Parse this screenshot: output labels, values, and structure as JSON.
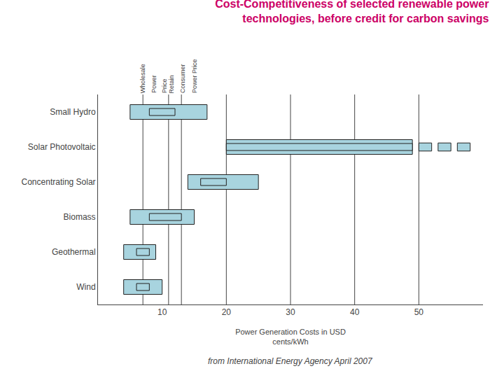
{
  "chart_data": {
    "type": "bar",
    "orientation": "horizontal",
    "title": "Cost-Competitiveness of selected renewable power\ntechnologies, before credit for carbon savings",
    "title_color": "#cc0066",
    "subtitle": "from International Energy Agency April 2007",
    "x_label": "Power Generation Costs in USD\ncents/kWh",
    "categories": [
      "Small Hydro",
      "Solar Photovoltaic",
      "Concentrating Solar",
      "Biomass",
      "Geothermal",
      "Wind"
    ],
    "series": [
      {
        "color": "#a8d4df",
        "low": [
          5,
          20,
          14,
          5,
          4,
          4
        ],
        "high": [
          17,
          49,
          25,
          15,
          9,
          10
        ]
      },
      {
        "color": "#a8d4df",
        "low": [
          8,
          20,
          16,
          8,
          6,
          6
        ],
        "high": [
          12,
          49,
          20,
          13,
          8,
          8
        ]
      }
    ],
    "extra_bars": {
      "category": "Solar Photovoltaic",
      "color": "#a8d4df",
      "low": [
        50,
        53,
        56
      ],
      "high": [
        52,
        55,
        58
      ]
    },
    "edge_color": "#222222",
    "vlines": [
      7,
      11,
      13,
      20,
      30,
      40,
      50
    ],
    "annotations": [
      {
        "text": "Wholesale",
        "x": 7
      },
      {
        "text": "Power",
        "x": 8.7
      },
      {
        "text": "Price",
        "x": 10.3
      },
      {
        "text": "Retain",
        "x": 11.5
      },
      {
        "text": "Consumer",
        "x": 13.2
      },
      {
        "text": "Power Price",
        "x": 15.0
      }
    ],
    "xlim": [
      0,
      60
    ],
    "xticks": [
      10,
      20,
      30,
      40,
      50
    ]
  }
}
